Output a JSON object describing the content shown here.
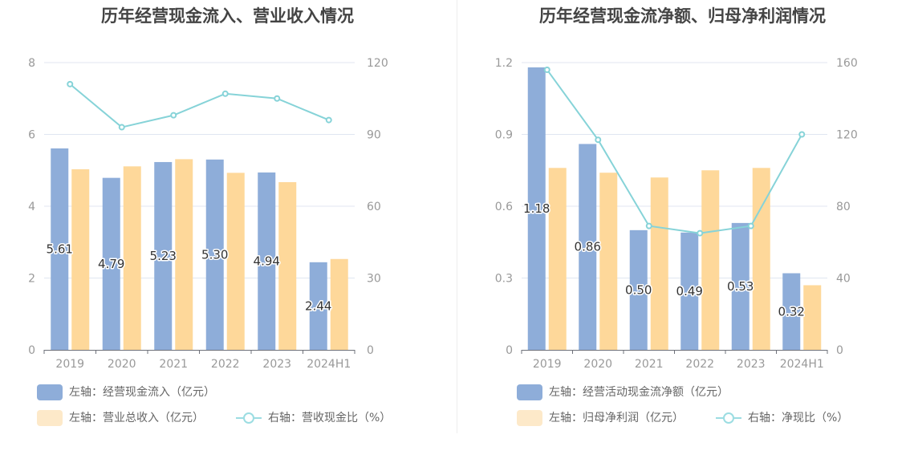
{
  "colors": {
    "bar_primary": "#8eadd9",
    "bar_secondary": "#fed89a",
    "line": "#86d3d8",
    "legend_line": "#9cdde2",
    "axis_text": "#999999",
    "grid": "#e0e6f1"
  },
  "chart_data": [
    {
      "type": "bar",
      "title": "历年经营现金流入、营业收入情况",
      "categories": [
        "2019",
        "2020",
        "2021",
        "2022",
        "2023",
        "2024H1"
      ],
      "left_axis": {
        "ylim": [
          0,
          8
        ],
        "ticks": [
          "0",
          "2",
          "4",
          "6",
          "8"
        ]
      },
      "right_axis": {
        "ylim": [
          0,
          120
        ],
        "ticks": [
          "0",
          "30",
          "60",
          "90",
          "120"
        ]
      },
      "series": [
        {
          "name": "左轴：经营现金流入（亿元）",
          "type": "bar",
          "axis": "left",
          "values": [
            5.61,
            4.79,
            5.23,
            5.3,
            4.94,
            2.44
          ],
          "labels": [
            "5.61",
            "4.79",
            "5.23",
            "5.30",
            "4.94",
            "2.44"
          ]
        },
        {
          "name": "左轴：营业总收入（亿元）",
          "type": "bar",
          "axis": "left",
          "values": [
            5.03,
            5.11,
            5.31,
            4.93,
            4.67,
            2.53
          ]
        },
        {
          "name": "右轴：营收现金比（%）",
          "type": "line",
          "axis": "right",
          "values": [
            111,
            93,
            98,
            107,
            105,
            96
          ]
        }
      ],
      "legend_position": "bottom"
    },
    {
      "type": "bar",
      "title": "历年经营现金流净额、归母净利润情况",
      "categories": [
        "2019",
        "2020",
        "2021",
        "2022",
        "2023",
        "2024H1"
      ],
      "left_axis": {
        "ylim": [
          0,
          1.2
        ],
        "ticks": [
          "0",
          "0.3",
          "0.6",
          "0.9",
          "1.2"
        ]
      },
      "right_axis": {
        "ylim": [
          0,
          160
        ],
        "ticks": [
          "0",
          "40",
          "80",
          "120",
          "160"
        ]
      },
      "series": [
        {
          "name": "左轴：经营活动现金流净额（亿元）",
          "type": "bar",
          "axis": "left",
          "values": [
            1.18,
            0.86,
            0.5,
            0.49,
            0.53,
            0.32
          ],
          "labels": [
            "1.18",
            "0.86",
            "0.50",
            "0.49",
            "0.53",
            "0.32"
          ]
        },
        {
          "name": "左轴：归母净利润（亿元）",
          "type": "bar",
          "axis": "left",
          "values": [
            0.76,
            0.74,
            0.72,
            0.75,
            0.76,
            0.27
          ]
        },
        {
          "name": "右轴：净现比（%）",
          "type": "line",
          "axis": "right",
          "values": [
            156,
            117,
            69,
            65,
            69,
            120
          ]
        }
      ],
      "legend_position": "bottom"
    }
  ]
}
